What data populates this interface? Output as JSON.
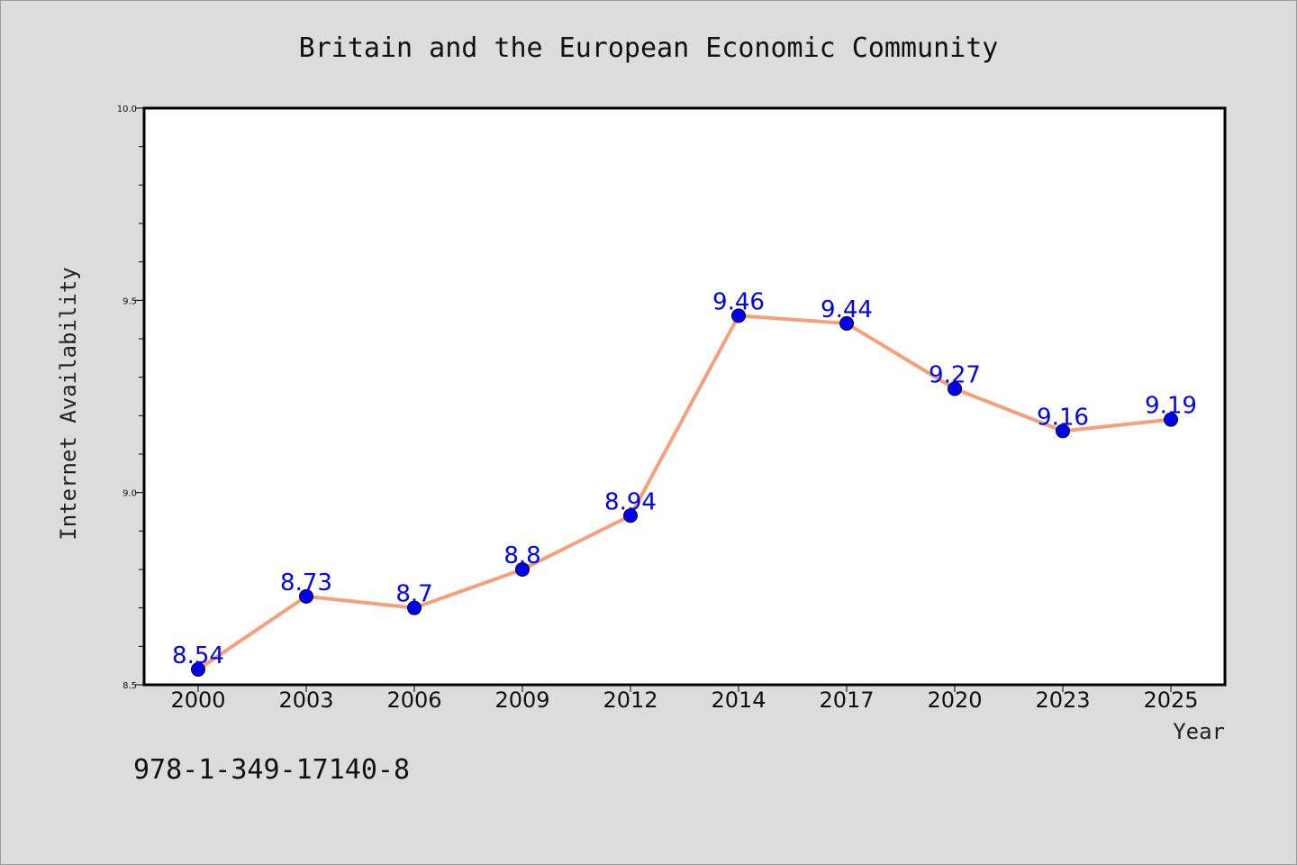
{
  "chart_data": {
    "type": "line",
    "title": "Britain and the European Economic Community",
    "xlabel": "Year",
    "ylabel": "Internet Availability",
    "categories": [
      "2000",
      "2003",
      "2006",
      "2009",
      "2012",
      "2014",
      "2017",
      "2020",
      "2023",
      "2025"
    ],
    "series": [
      {
        "values": [
          8.54,
          8.73,
          8.7,
          8.8,
          8.94,
          9.46,
          9.44,
          9.27,
          9.16,
          9.19
        ]
      }
    ],
    "data_labels": [
      "8.54",
      "8.73",
      "8.7",
      "8.8",
      "8.94",
      "9.46",
      "9.44",
      "9.27",
      "9.16",
      "9.19"
    ],
    "ylim": [
      8.5,
      10.0
    ],
    "yticks": [
      "8.5",
      "9.0",
      "9.5",
      "10.0"
    ],
    "ytick_values": [
      8.5,
      9.0,
      9.5,
      10.0
    ],
    "y_minor_step": 0.1,
    "grid": false,
    "line_color": "#f4a07c",
    "marker_color": "#0000ee",
    "label_color": "#0000ee"
  },
  "footer": {
    "isbn": "978-1-349-17140-8"
  }
}
